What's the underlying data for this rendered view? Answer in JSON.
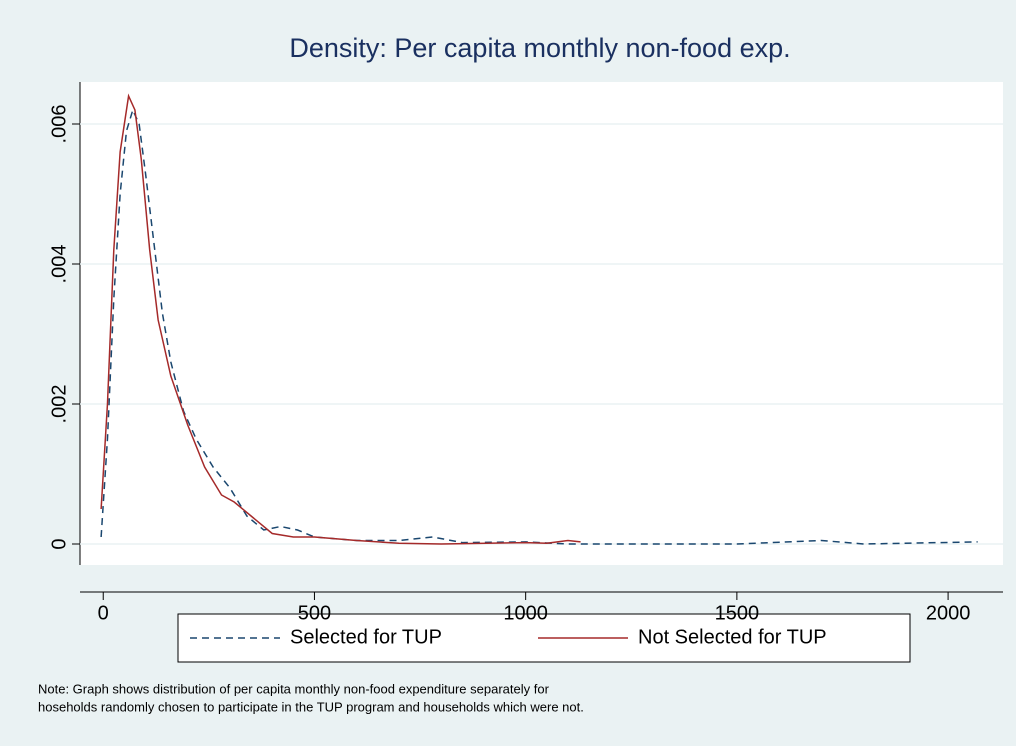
{
  "chart_data": {
    "type": "line",
    "title": "Density: Per capita monthly non-food exp.",
    "series": [
      {
        "name": "Selected for TUP",
        "color": "#1a476f",
        "dash": true,
        "x": [
          -5,
          10,
          25,
          40,
          55,
          70,
          85,
          100,
          120,
          140,
          160,
          190,
          220,
          260,
          300,
          340,
          380,
          420,
          460,
          500,
          600,
          700,
          780,
          850,
          1000,
          1100,
          1200,
          1500,
          1700,
          1800,
          2070
        ],
        "values": [
          0.0001,
          0.0015,
          0.0035,
          0.005,
          0.0059,
          0.0062,
          0.006,
          0.0053,
          0.0043,
          0.0033,
          0.0026,
          0.0019,
          0.0015,
          0.0011,
          0.0008,
          0.0004,
          0.0002,
          0.00025,
          0.0002,
          0.0001,
          5e-05,
          5e-05,
          0.0001,
          2e-05,
          3e-05,
          0,
          0,
          0,
          5e-05,
          0,
          3e-05
        ]
      },
      {
        "name": "Not Selected for TUP",
        "color": "#a52a2a",
        "dash": false,
        "x": [
          -5,
          10,
          25,
          40,
          60,
          75,
          90,
          110,
          130,
          160,
          200,
          240,
          280,
          310,
          350,
          400,
          450,
          500,
          600,
          700,
          800,
          1000,
          1050,
          1100,
          1130
        ],
        "values": [
          0.0005,
          0.002,
          0.0042,
          0.0056,
          0.0064,
          0.0062,
          0.0055,
          0.0042,
          0.0032,
          0.0024,
          0.0017,
          0.0011,
          0.0007,
          0.0006,
          0.0004,
          0.00015,
          0.0001,
          0.0001,
          5e-05,
          1e-05,
          0,
          2e-05,
          1e-05,
          5e-05,
          3e-05
        ]
      }
    ],
    "xlim": [
      -55,
      2130
    ],
    "xticks": [
      0,
      500,
      1000,
      1500,
      2000
    ],
    "ylim": [
      -0.0003,
      0.0066
    ],
    "yticks": [
      0,
      {
        "value": 0.002,
        "label": ".002"
      },
      {
        "value": 0.004,
        "label": ".004"
      },
      {
        "value": 0.006,
        "label": ".006"
      }
    ],
    "grid": true,
    "note": [
      "Note: Graph shows distribution of per capita monthly non-food expenditure separately for",
      "hoseholds randomly chosen to participate in the TUP program and households which were not."
    ]
  }
}
